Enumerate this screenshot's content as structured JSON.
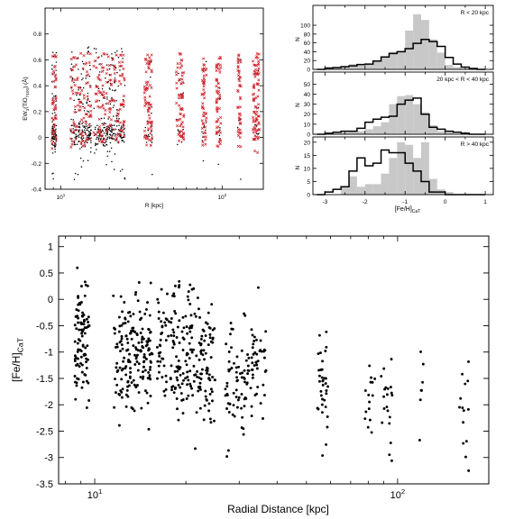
{
  "chart_data": [
    {
      "type": "scatter",
      "panel": "top-left",
      "title": "",
      "xlabel": "R [kpc]",
      "ylabel": "EW_{1}(TiO_{7100}) (Å)",
      "xscale": "log",
      "xlim": [
        8,
        180
      ],
      "ylim": [
        -0.4,
        1.0
      ],
      "xtick_labels": [
        {
          "value": 10,
          "label": "10",
          "sup": "1"
        },
        {
          "value": 100,
          "label": "10",
          "sup": "2"
        }
      ],
      "ytick_labels": [
        "-0.4",
        "-0.2",
        "0",
        "0.2",
        "0.4",
        "0.6",
        "0.8"
      ],
      "ytick_values": [
        -0.4,
        -0.2,
        0,
        0.2,
        0.4,
        0.6,
        0.8
      ],
      "series": [
        {
          "color": "#000000",
          "marker": "dot"
        },
        {
          "color": "#d0202a",
          "marker": "x"
        }
      ],
      "groups": [
        {
          "r": [
            8.8,
            9.4
          ],
          "n_black": 90,
          "n_red": 45
        },
        {
          "r": [
            11.5,
            15.5
          ],
          "n_black": 170,
          "n_red": 90
        },
        {
          "r": [
            16,
            21
          ],
          "n_black": 140,
          "n_red": 80
        },
        {
          "r": [
            21,
            25
          ],
          "n_black": 90,
          "n_red": 55
        },
        {
          "r": [
            33,
            37
          ],
          "n_black": 20,
          "n_red": 70
        },
        {
          "r": [
            52,
            58
          ],
          "n_black": 15,
          "n_red": 65
        },
        {
          "r": [
            75,
            80
          ],
          "n_black": 10,
          "n_red": 50
        },
        {
          "r": [
            92,
            98
          ],
          "n_black": 10,
          "n_red": 55
        },
        {
          "r": [
            125,
            131
          ],
          "n_black": 8,
          "n_red": 45
        },
        {
          "r": [
            155,
            170
          ],
          "n_black": 10,
          "n_red": 80
        }
      ]
    },
    {
      "type": "bar",
      "panel": "top-right-1",
      "title": "",
      "legend_text": "R < 20 kpc",
      "xlim": [
        -3.3,
        1.2
      ],
      "ylim": [
        0,
        145
      ],
      "ylabel": "N",
      "ytick_labels": [
        "0",
        "20",
        "40",
        "60",
        "80",
        "100"
      ],
      "ytick_values": [
        0,
        20,
        40,
        60,
        80,
        100
      ],
      "bin_edges": [
        -3.2,
        -3.0,
        -2.8,
        -2.6,
        -2.4,
        -2.2,
        -2.0,
        -1.8,
        -1.6,
        -1.4,
        -1.2,
        -1.0,
        -0.8,
        -0.6,
        -0.4,
        -0.2,
        0.0,
        0.2,
        0.4,
        0.6,
        0.8,
        1.0
      ],
      "series": [
        {
          "name": "",
          "style": "filled",
          "color": "#c8c8c8",
          "values": [
            0,
            2,
            3,
            6,
            12,
            9,
            12,
            18,
            28,
            40,
            42,
            88,
            125,
            112,
            68,
            38,
            10,
            5,
            2,
            1,
            0
          ]
        },
        {
          "name": "",
          "style": "step",
          "color": "#000000",
          "values": [
            0,
            3,
            4,
            6,
            8,
            11,
            12,
            19,
            28,
            36,
            40,
            47,
            59,
            68,
            63,
            52,
            27,
            12,
            5,
            2,
            0
          ]
        }
      ]
    },
    {
      "type": "bar",
      "panel": "top-right-2",
      "title": "",
      "legend_text": "20 kpc < R < 40 kpc",
      "xlim": [
        -3.3,
        1.2
      ],
      "ylim": [
        0,
        62
      ],
      "ylabel": "N",
      "ytick_labels": [
        "0",
        "10",
        "20",
        "30",
        "40",
        "50"
      ],
      "ytick_values": [
        0,
        10,
        20,
        30,
        40,
        50
      ],
      "bin_edges": [
        -3.2,
        -3.0,
        -2.8,
        -2.6,
        -2.4,
        -2.2,
        -2.0,
        -1.8,
        -1.6,
        -1.4,
        -1.2,
        -1.0,
        -0.8,
        -0.6,
        -0.4,
        -0.2,
        0.0,
        0.2,
        0.4,
        0.6,
        0.8,
        1.0
      ],
      "series": [
        {
          "name": "",
          "style": "filled",
          "color": "#c8c8c8",
          "values": [
            0,
            0,
            1,
            2,
            3,
            3,
            5,
            8,
            12,
            30,
            38,
            39,
            30,
            22,
            9,
            3,
            2,
            0,
            0,
            0,
            0
          ]
        },
        {
          "name": "",
          "style": "step",
          "color": "#000000",
          "values": [
            0,
            1,
            2,
            3,
            3,
            6,
            12,
            15,
            17,
            18,
            30,
            34,
            36,
            20,
            7,
            5,
            3,
            2,
            1,
            0,
            0
          ]
        }
      ]
    },
    {
      "type": "bar",
      "panel": "top-right-3",
      "title": "",
      "legend_text": "R > 40 kpc",
      "xlim": [
        -3.3,
        1.2
      ],
      "ylim": [
        0,
        22
      ],
      "ylabel": "N",
      "xlabel": "[Fe/H]_{CaT}",
      "xtick_labels": [
        "-3",
        "-2",
        "-1",
        "0",
        "1"
      ],
      "xtick_values": [
        -3,
        -2,
        -1,
        0,
        1
      ],
      "ytick_labels": [
        "0",
        "5",
        "10",
        "15",
        "20"
      ],
      "ytick_values": [
        0,
        5,
        10,
        15,
        20
      ],
      "bin_edges": [
        -3.2,
        -3.0,
        -2.8,
        -2.6,
        -2.4,
        -2.2,
        -2.0,
        -1.8,
        -1.6,
        -1.4,
        -1.2,
        -1.0,
        -0.8,
        -0.6,
        -0.4,
        -0.2,
        0.0,
        0.2,
        0.4,
        0.6,
        0.8,
        1.0
      ],
      "series": [
        {
          "name": "",
          "style": "filled",
          "color": "#c8c8c8",
          "values": [
            0,
            0,
            0,
            3,
            7,
            3,
            4,
            4,
            8,
            14,
            20,
            19,
            14,
            20,
            6,
            2,
            1,
            0,
            0,
            0,
            0
          ]
        },
        {
          "name": "",
          "style": "step",
          "color": "#000000",
          "values": [
            0,
            1,
            2,
            3,
            9,
            14,
            11,
            12,
            17,
            16,
            16,
            12,
            9,
            5,
            1,
            1,
            0,
            0,
            0,
            0,
            0
          ]
        }
      ]
    },
    {
      "type": "scatter",
      "panel": "bottom",
      "title": "",
      "xlabel": "Radial Distance [kpc]",
      "ylabel": "[Fe/H]_{CaT}",
      "xscale": "log",
      "xlim": [
        7.6,
        200
      ],
      "ylim": [
        -3.5,
        1.2
      ],
      "xtick_labels": [
        {
          "value": 10,
          "label": "10",
          "sup": "1"
        },
        {
          "value": 100,
          "label": "10",
          "sup": "2"
        }
      ],
      "ytick_labels": [
        "1",
        "0.5",
        "0",
        "-0.5",
        "-1",
        "-1.5",
        "-2",
        "-2.5",
        "-3",
        "-3.5"
      ],
      "ytick_values": [
        1,
        0.5,
        0,
        -0.5,
        -1,
        -1.5,
        -2,
        -2.5,
        -3,
        -3.5
      ],
      "series": [
        {
          "color": "#000000",
          "marker": "dot"
        }
      ],
      "groups": [
        {
          "r": [
            8.6,
            9.6
          ],
          "n": 95,
          "mean": -0.8,
          "sd": 0.55
        },
        {
          "r": [
            11.5,
            15.5
          ],
          "n": 180,
          "mean": -1.0,
          "sd": 0.6
        },
        {
          "r": [
            16,
            21
          ],
          "n": 140,
          "mean": -1.05,
          "sd": 0.6
        },
        {
          "r": [
            21,
            25
          ],
          "n": 90,
          "mean": -1.15,
          "sd": 0.6
        },
        {
          "r": [
            27,
            33
          ],
          "n": 75,
          "mean": -1.5,
          "sd": 0.5
        },
        {
          "r": [
            33,
            37
          ],
          "n": 40,
          "mean": -1.2,
          "sd": 0.5
        },
        {
          "r": [
            54,
            59
          ],
          "n": 35,
          "mean": -1.65,
          "sd": 0.5
        },
        {
          "r": [
            78,
            85
          ],
          "n": 15,
          "mean": -2.1,
          "sd": 0.4
        },
        {
          "r": [
            88,
            96
          ],
          "n": 20,
          "mean": -2.1,
          "sd": 0.4
        },
        {
          "r": [
            116,
            123
          ],
          "n": 7,
          "mean": -1.8,
          "sd": 0.35
        },
        {
          "r": [
            160,
            172
          ],
          "n": 14,
          "mean": -2.15,
          "sd": 0.55
        }
      ]
    }
  ]
}
